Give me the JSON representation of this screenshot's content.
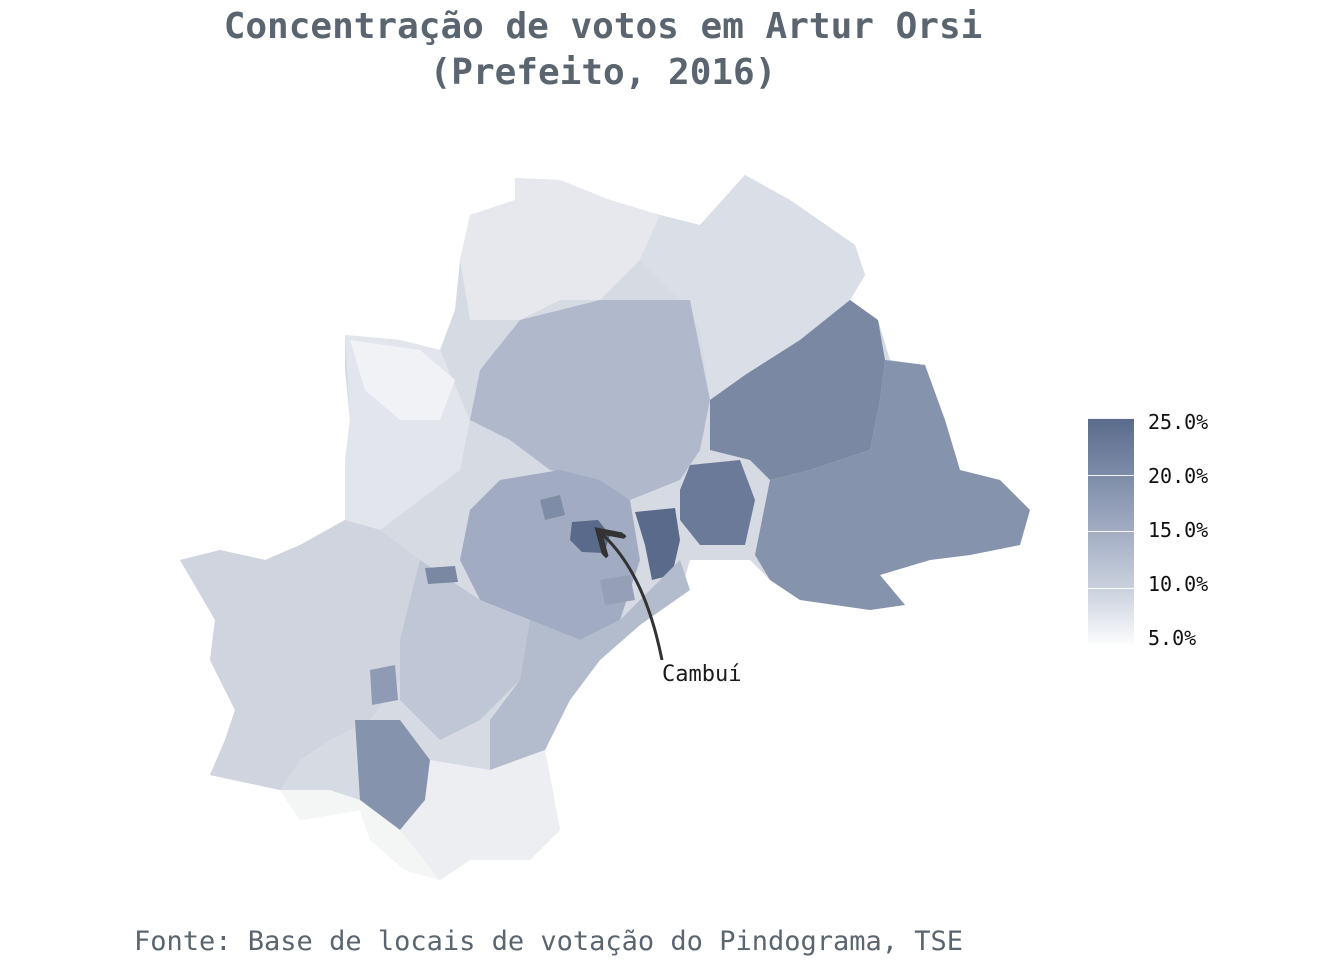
{
  "title": {
    "line1": "Concentração de votos em Artur Orsi",
    "line2": "(Prefeito, 2016)"
  },
  "annotation": {
    "label": "Cambuí"
  },
  "legend": {
    "labels": [
      "25.0%",
      "20.0%",
      "15.0%",
      "10.0%",
      "5.0%"
    ],
    "colors": {
      "high": "#5a6a8a",
      "low": "#ffffff"
    }
  },
  "source": "Fonte: Base de locais de votação do Pindograma, TSE",
  "colors": {
    "text": "#5a6570",
    "region_light": "#d6dae3",
    "region_mid": "#a8b2c6",
    "region_dark": "#7a88a3",
    "region_darkest": "#5a6a8a"
  }
}
